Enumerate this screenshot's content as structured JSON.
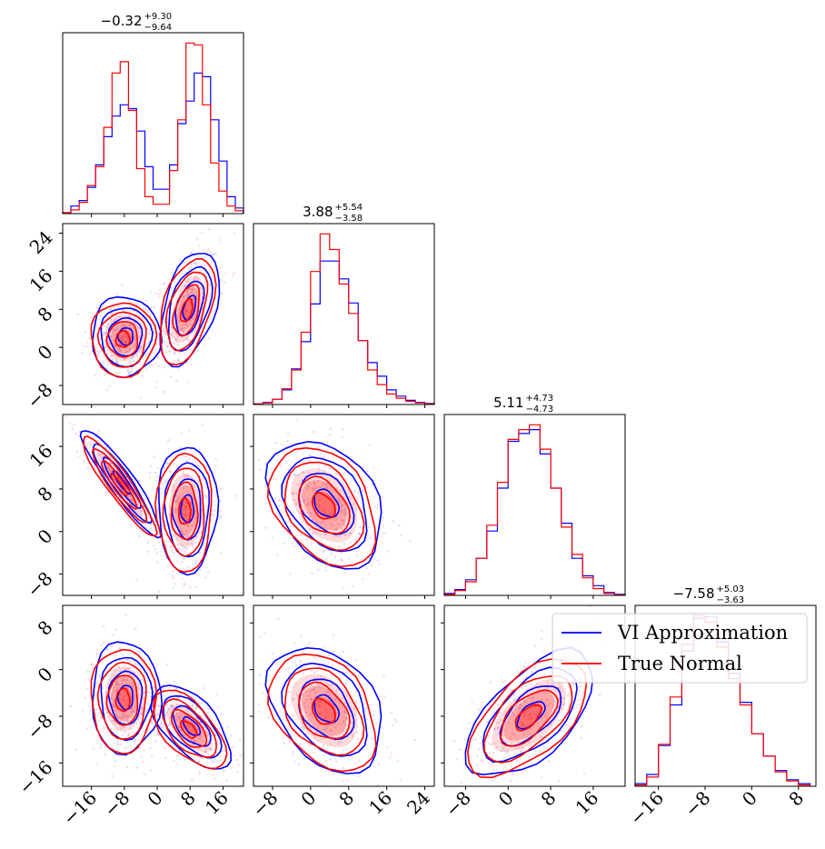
{
  "colors": {
    "vi": "#0000ff",
    "true": "#ff0000",
    "axes": "#000000",
    "background": "#ffffff"
  },
  "legend": {
    "placement": "upper-right",
    "entries": [
      {
        "label": "VI Approximation",
        "color": "#0000ff"
      },
      {
        "label": "True Normal",
        "color": "#ff0000"
      }
    ]
  },
  "chart_data": {
    "type": "corner",
    "n_params": 4,
    "grid": false,
    "series": [
      {
        "name": "VI Approximation",
        "color": "#0000ff"
      },
      {
        "name": "True Normal",
        "color": "#ff0000"
      }
    ],
    "titles": [
      {
        "median": "−0.32",
        "plus": "+9.30",
        "minus": "−9.64"
      },
      {
        "median": "3.88",
        "plus": "+5.54",
        "minus": "−3.58"
      },
      {
        "median": "5.11",
        "plus": "+4.73",
        "minus": "−4.73"
      },
      {
        "median": "−7.58",
        "plus": "+5.03",
        "minus": "−3.63"
      }
    ],
    "ranges": [
      [
        -23,
        21
      ],
      [
        -12,
        26
      ],
      [
        -12,
        22
      ],
      [
        -20,
        11
      ]
    ],
    "ticks": [
      [
        -16,
        -8,
        0,
        8,
        16
      ],
      [
        -8,
        0,
        8,
        16,
        24
      ],
      [
        -8,
        0,
        8,
        16
      ],
      [
        -16,
        -8,
        0,
        8
      ]
    ],
    "tick_labels": [
      [
        "−16",
        "−8",
        "0",
        "8",
        "16"
      ],
      [
        "−8",
        "0",
        "8",
        "16",
        "24"
      ],
      [
        "−8",
        "0",
        "8",
        "16"
      ],
      [
        "−16",
        "−8",
        "0",
        "8"
      ]
    ],
    "marginals": [
      {
        "edges": [
          -23,
          -21,
          -19,
          -17,
          -15,
          -13,
          -11,
          -9,
          -7,
          -5,
          -3,
          -1,
          1,
          3,
          5,
          7,
          9,
          11,
          13,
          15,
          17,
          19,
          21
        ],
        "VI Approximation": [
          0.5,
          4,
          7,
          14,
          26,
          41,
          52,
          58,
          56,
          44,
          25,
          13,
          13,
          26,
          48,
          60,
          75,
          73,
          50,
          28,
          9,
          3
        ],
        "True Normal": [
          0.5,
          2,
          6,
          15,
          25,
          46,
          75,
          81,
          55,
          24,
          9,
          5,
          5,
          23,
          50,
          91,
          90,
          58,
          27,
          12,
          4,
          1.5
        ]
      },
      {
        "edges": [
          -12,
          -10,
          -8,
          -6,
          -4,
          -2,
          0,
          2,
          4,
          6,
          8,
          10,
          12,
          14,
          16,
          18,
          20,
          22,
          24,
          26
        ],
        "VI Approximation": [
          0.5,
          2,
          5,
          14,
          34,
          60,
          96,
          137,
          137,
          120,
          97,
          61,
          40,
          27,
          14,
          8,
          4,
          2,
          1
        ],
        "True Normal": [
          0.5,
          1.5,
          5,
          15,
          33,
          69,
          127,
          163,
          148,
          115,
          87,
          61,
          33,
          19,
          10,
          6,
          3,
          1.5,
          0.5
        ]
      },
      {
        "edges": [
          -12,
          -10,
          -8,
          -6,
          -4,
          -2,
          0,
          2,
          4,
          6,
          8,
          10,
          12,
          14,
          16,
          18,
          20,
          22
        ],
        "VI Approximation": [
          2,
          6,
          16,
          38,
          66,
          110,
          158,
          166,
          170,
          145,
          110,
          74,
          38,
          20,
          10,
          3,
          1
        ],
        "True Normal": [
          1,
          5,
          14,
          38,
          72,
          116,
          160,
          170,
          175,
          150,
          110,
          70,
          42,
          18,
          7,
          2,
          0.5
        ]
      },
      {
        "edges": [
          -20,
          -18,
          -16,
          -14,
          -12,
          -10,
          -8,
          -6,
          -4,
          -2,
          0,
          2,
          4,
          6,
          8,
          10
        ],
        "VI Approximation": [
          2,
          9,
          31,
          62,
          103,
          128,
          129,
          110,
          86,
          64,
          40,
          23,
          12,
          5,
          2
        ],
        "True Normal": [
          1,
          7,
          32,
          68,
          108,
          130,
          125,
          106,
          82,
          62,
          40,
          23,
          11,
          4,
          1
        ]
      }
    ],
    "pairs": [
      {
        "x": 0,
        "y": 1,
        "modes": [
          {
            "mean": [
              -8,
              2
            ],
            "sd": [
              3.5,
              3.5
            ],
            "rho": 0.0
          },
          {
            "mean": [
              7.5,
              8
            ],
            "sd": [
              3.0,
              5.0
            ],
            "rho": 0.45
          }
        ]
      },
      {
        "x": 0,
        "y": 2,
        "modes": [
          {
            "mean": [
              -9,
              9
            ],
            "sd": [
              4.0,
              4.2
            ],
            "rho": -0.92
          },
          {
            "mean": [
              7,
              4
            ],
            "sd": [
              3.0,
              5.0
            ],
            "rho": 0.0
          }
        ]
      },
      {
        "x": 1,
        "y": 2,
        "modes": [
          {
            "mean": [
              3,
              5
            ],
            "sd": [
              5.0,
              5.0
            ],
            "rho": -0.35
          }
        ]
      },
      {
        "x": 0,
        "y": 3,
        "modes": [
          {
            "mean": [
              -8,
              -5
            ],
            "sd": [
              3.5,
              4.0
            ],
            "rho": 0.0
          },
          {
            "mean": [
              8,
              -10
            ],
            "sd": [
              4.0,
              3.0
            ],
            "rho": -0.6
          }
        ]
      },
      {
        "x": 1,
        "y": 3,
        "modes": [
          {
            "mean": [
              3,
              -7
            ],
            "sd": [
              5.0,
              4.5
            ],
            "rho": -0.35
          }
        ]
      },
      {
        "x": 2,
        "y": 3,
        "modes": [
          {
            "mean": [
              4,
              -8
            ],
            "sd": [
              5.0,
              4.5
            ],
            "rho": 0.6
          }
        ]
      }
    ]
  }
}
